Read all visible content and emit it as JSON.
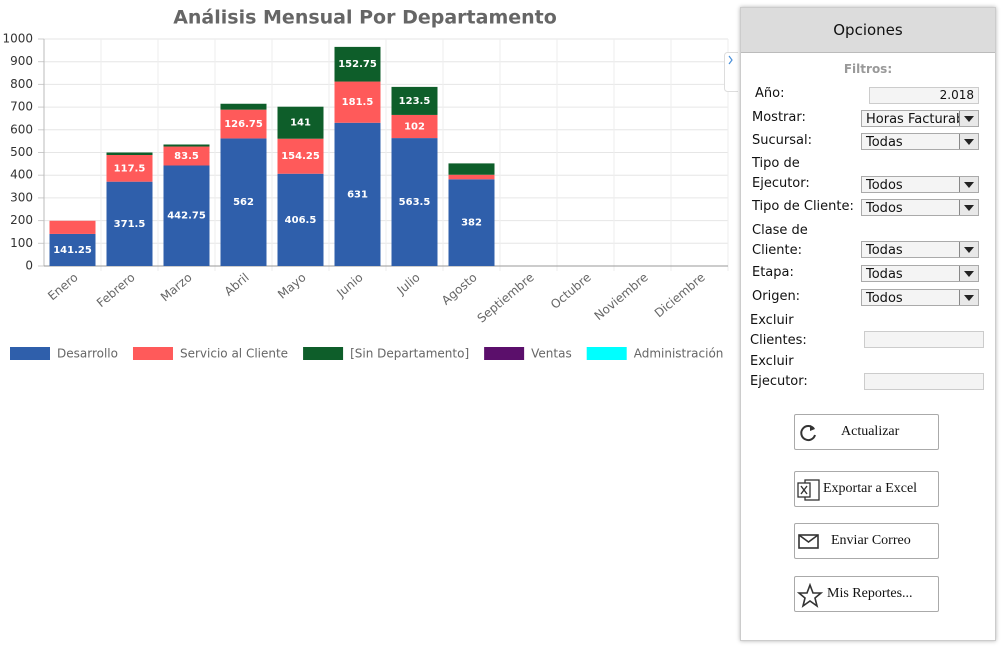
{
  "chart_data": {
    "type": "stacked_bar",
    "title": "Análisis Mensual Por Departamento",
    "categories": [
      "Enero",
      "Febrero",
      "Marzo",
      "Abril",
      "Mayo",
      "Junio",
      "Julio",
      "Agosto",
      "Septiembre",
      "Octubre",
      "Noviembre",
      "Diciembre"
    ],
    "series": [
      {
        "name": "Desarrollo",
        "color": "#2f5fab",
        "values": [
          141.25,
          371.5,
          442.75,
          562,
          406.5,
          631,
          563.5,
          382,
          null,
          null,
          null,
          null
        ]
      },
      {
        "name": "Servicio al Cliente",
        "color": "#ff5a5a",
        "values": [
          58,
          117.5,
          83.5,
          126.75,
          154.25,
          181.5,
          102,
          20,
          null,
          null,
          null,
          null
        ]
      },
      {
        "name": "[Sin Departamento]",
        "color": "#0e5e2a",
        "values": [
          0,
          11,
          9,
          26,
          141,
          152.75,
          123.5,
          50,
          null,
          null,
          null,
          null
        ]
      },
      {
        "name": "Ventas",
        "color": "#5b0f6b",
        "values": [
          0,
          0,
          0,
          0,
          0,
          0,
          0,
          0,
          null,
          null,
          null,
          null
        ]
      },
      {
        "name": "Administración",
        "color": "#00ffff",
        "values": [
          0,
          0,
          0,
          0,
          0,
          0,
          0,
          0,
          null,
          null,
          null,
          null
        ]
      }
    ],
    "ylim": [
      0,
      1000
    ],
    "yticks": [
      0,
      100,
      200,
      300,
      400,
      500,
      600,
      700,
      800,
      900,
      1000
    ],
    "grid": true,
    "legend": "bottom"
  },
  "options_panel": {
    "title": "Opciones",
    "section": "Filtros:",
    "fields": [
      {
        "label": "Año:",
        "value": "2.018"
      },
      {
        "label": "Mostrar:",
        "value": "Horas Facturab"
      },
      {
        "label": "Sucursal:",
        "value": "Todas"
      },
      {
        "label": "Tipo de\nEjecutor:",
        "value": "Todos"
      },
      {
        "label": "Tipo de Cliente:",
        "value": "Todos"
      },
      {
        "label": "Clase de\nCliente:",
        "value": "Todas"
      },
      {
        "label": "Etapa:",
        "value": "Todas"
      },
      {
        "label": "Origen:",
        "value": "Todos"
      },
      {
        "label": "Excluir\nClientes:"
      },
      {
        "label": "Excluir\nEjecutor:"
      }
    ],
    "buttons": [
      "Actualizar",
      "Exportar a Excel",
      "Enviar Correo",
      "Mis Reportes..."
    ]
  }
}
